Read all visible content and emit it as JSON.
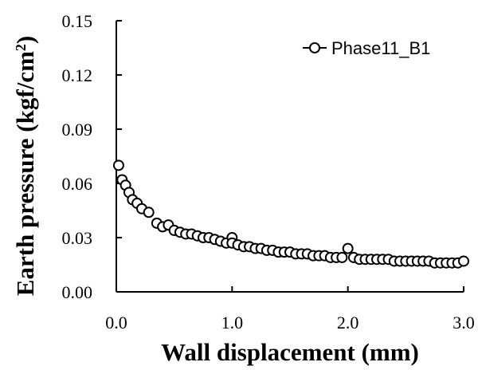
{
  "chart_data": {
    "type": "scatter",
    "xlabel": "Wall displacement (mm)",
    "ylabel": "Earth pressure (kgf/cm",
    "ylabel_sup": "2",
    "ylabel_close": ")",
    "xlim": [
      0.0,
      3.0
    ],
    "ylim": [
      0.0,
      0.15
    ],
    "xticks": [
      "0.0",
      "1.0",
      "2.0",
      "3.0"
    ],
    "yticks": [
      "0.00",
      "0.03",
      "0.06",
      "0.09",
      "0.12",
      "0.15"
    ],
    "grid": false,
    "legend_position": "top-right",
    "series": [
      {
        "name": "Phase11_B1",
        "marker": "open-circle",
        "color": "#000000",
        "x": [
          0.02,
          0.05,
          0.08,
          0.11,
          0.14,
          0.18,
          0.22,
          0.28,
          0.35,
          0.4,
          0.45,
          0.5,
          0.55,
          0.6,
          0.65,
          0.7,
          0.75,
          0.8,
          0.85,
          0.9,
          0.95,
          1.0,
          1.0,
          1.05,
          1.1,
          1.15,
          1.2,
          1.25,
          1.3,
          1.35,
          1.4,
          1.45,
          1.5,
          1.55,
          1.6,
          1.65,
          1.7,
          1.75,
          1.8,
          1.85,
          1.9,
          1.95,
          2.0,
          2.05,
          2.1,
          2.15,
          2.2,
          2.25,
          2.3,
          2.35,
          2.4,
          2.45,
          2.5,
          2.55,
          2.6,
          2.65,
          2.7,
          2.75,
          2.8,
          2.85,
          2.9,
          2.95,
          3.0
        ],
        "y": [
          0.07,
          0.062,
          0.059,
          0.055,
          0.051,
          0.049,
          0.046,
          0.044,
          0.038,
          0.036,
          0.037,
          0.034,
          0.033,
          0.032,
          0.032,
          0.031,
          0.03,
          0.03,
          0.029,
          0.028,
          0.027,
          0.03,
          0.027,
          0.026,
          0.025,
          0.025,
          0.024,
          0.024,
          0.023,
          0.023,
          0.022,
          0.022,
          0.022,
          0.021,
          0.021,
          0.021,
          0.02,
          0.02,
          0.02,
          0.019,
          0.019,
          0.019,
          0.024,
          0.019,
          0.018,
          0.018,
          0.018,
          0.018,
          0.018,
          0.018,
          0.017,
          0.017,
          0.017,
          0.017,
          0.017,
          0.017,
          0.017,
          0.016,
          0.016,
          0.016,
          0.016,
          0.016,
          0.017
        ]
      }
    ]
  }
}
